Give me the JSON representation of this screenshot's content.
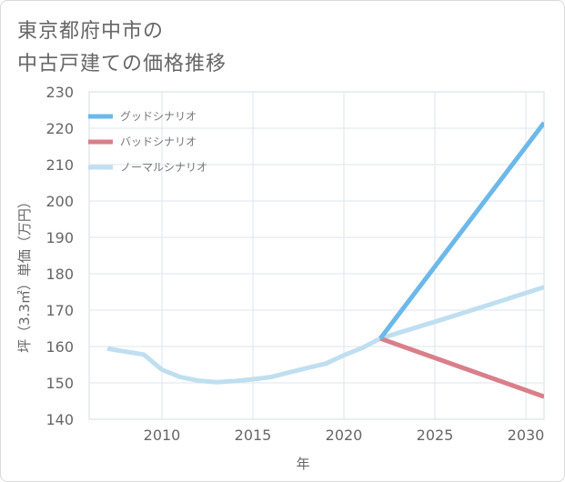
{
  "chart_data": {
    "type": "line",
    "title": "東京都府中市の\n中古戸建ての価格推移",
    "xlabel": "年",
    "ylabel": "坪（3.3㎡）単価（万円）",
    "xlim": [
      2006,
      2031
    ],
    "ylim": [
      140,
      230
    ],
    "xticks": [
      2010,
      2015,
      2020,
      2025,
      2030
    ],
    "yticks": [
      140,
      150,
      160,
      170,
      180,
      190,
      200,
      210,
      220,
      230
    ],
    "grid": true,
    "legend_position": "top-left",
    "series": [
      {
        "name": "グッドシナリオ",
        "color": "#6cb8ea",
        "points": [
          [
            2022,
            162.2
          ],
          [
            2031,
            221.5
          ]
        ]
      },
      {
        "name": "バッドシナリオ",
        "color": "#d97f8a",
        "points": [
          [
            2022,
            162.2
          ],
          [
            2031,
            146.2
          ]
        ]
      },
      {
        "name": "ノーマルシナリオ",
        "color": "#bfdff0",
        "points": [
          [
            2007,
            159.4
          ],
          [
            2008,
            158.6
          ],
          [
            2009,
            157.8
          ],
          [
            2010,
            153.6
          ],
          [
            2011,
            151.6
          ],
          [
            2012,
            150.6
          ],
          [
            2013,
            150.2
          ],
          [
            2014,
            150.5
          ],
          [
            2015,
            151.0
          ],
          [
            2016,
            151.6
          ],
          [
            2017,
            152.9
          ],
          [
            2018,
            154.1
          ],
          [
            2019,
            155.3
          ],
          [
            2020,
            157.6
          ],
          [
            2021,
            159.6
          ],
          [
            2022,
            162.2
          ],
          [
            2025,
            166.8
          ],
          [
            2028,
            171.5
          ],
          [
            2031,
            176.3
          ]
        ]
      }
    ]
  }
}
